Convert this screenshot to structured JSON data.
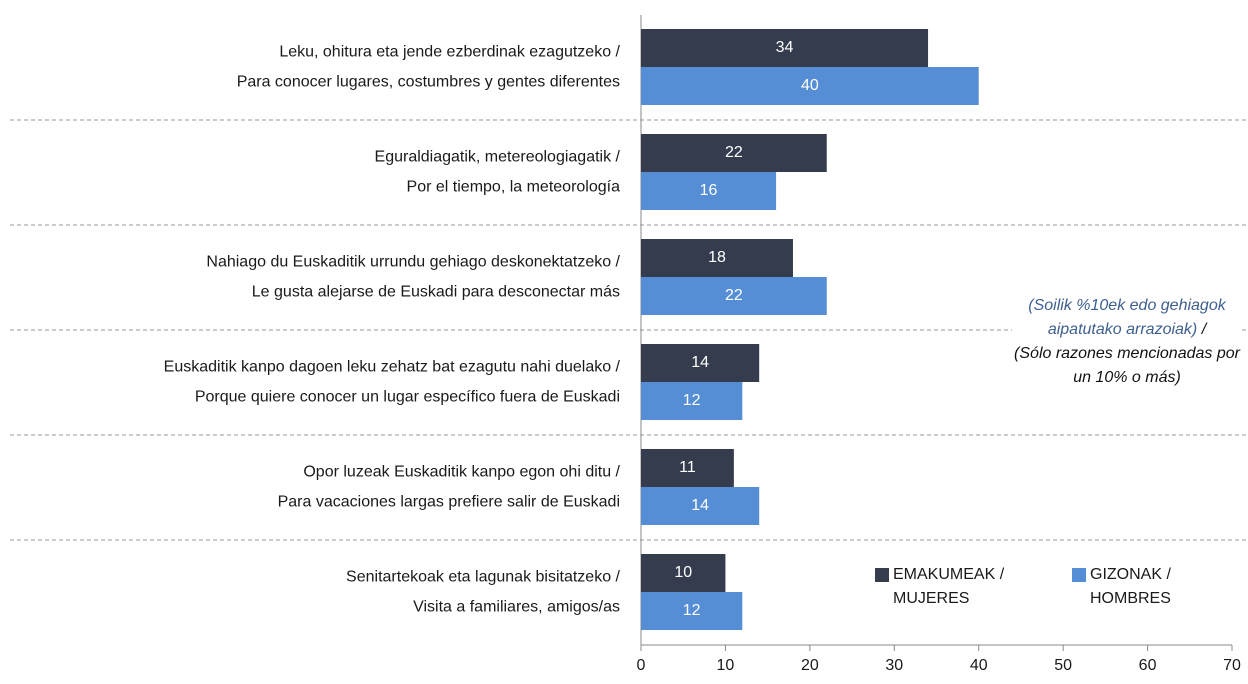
{
  "chart_data": {
    "type": "hbar",
    "categories": [
      [
        "Leku, ohitura eta jende ezberdinak ezagutzeko /",
        "Para conocer lugares, costumbres y gentes diferentes"
      ],
      [
        "Eguraldiagatik, metereologiagatik /",
        "Por el tiempo, la meteorología"
      ],
      [
        "Nahiago du Euskaditik urrundu gehiago deskonektatzeko /",
        "Le gusta alejarse de Euskadi para desconectar más"
      ],
      [
        "Euskaditik kanpo dagoen leku zehatz bat ezagutu nahi duelako /",
        "Porque quiere conocer un lugar específico fuera de Euskadi"
      ],
      [
        "Opor luzeak Euskaditik kanpo egon ohi ditu /",
        "Para vacaciones largas prefiere salir de Euskadi"
      ],
      [
        "Senitartekoak eta lagunak bisitatzeko /",
        "Visita a familiares, amigos/as"
      ]
    ],
    "series": [
      {
        "name": "EMAKUMEAK / MUJERES",
        "color": "#343c4d",
        "values": [
          34,
          22,
          18,
          14,
          11,
          10
        ]
      },
      {
        "name": "GIZONAK / HOMBRES",
        "color": "#558ed5",
        "values": [
          40,
          16,
          22,
          12,
          14,
          12
        ]
      }
    ],
    "xlim": [
      0,
      70
    ],
    "xticks": [
      0,
      10,
      20,
      30,
      40,
      50,
      60,
      70
    ],
    "annotations": [
      "(Soilik %10ek edo gehiagok aipatutako arrazoiak)",
      "/",
      "(Sólo razones mencionadas por un 10% o más)"
    ]
  }
}
